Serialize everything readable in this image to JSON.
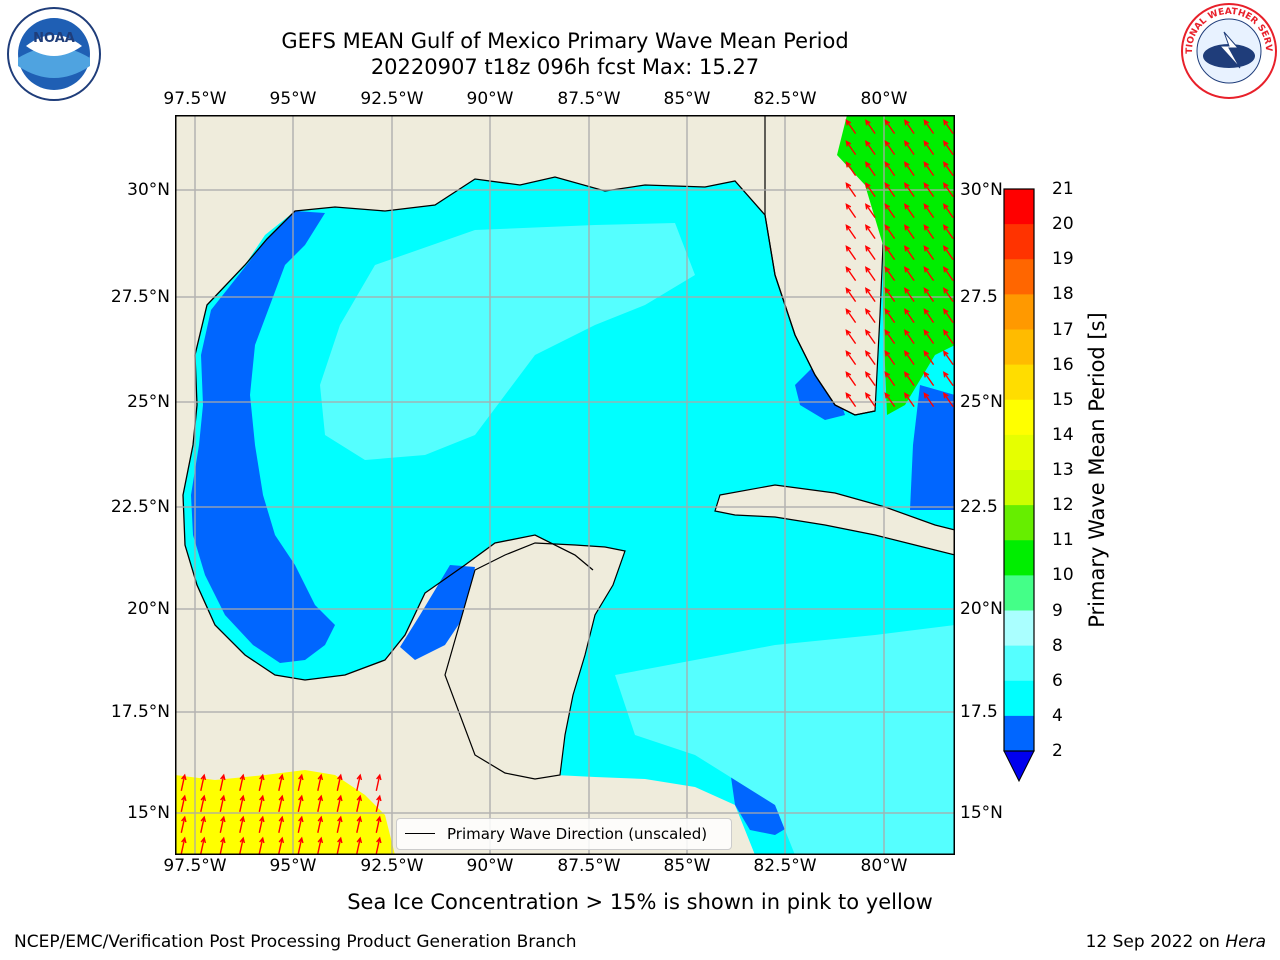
{
  "header": {
    "title_line1": "GEFS MEAN Gulf of Mexico Primary Wave Mean Period",
    "title_line2": "20220907 t18z 096h fcst   Max: 15.27"
  },
  "map": {
    "longitude_ticks": [
      "97.5°W",
      "95°W",
      "92.5°W",
      "90°W",
      "87.5°W",
      "85°W",
      "82.5°W",
      "80°W"
    ],
    "latitude_ticks_left": [
      "30°N",
      "27.5°N",
      "25°N",
      "22.5°N",
      "20°N",
      "17.5°N",
      "15°N"
    ],
    "latitude_ticks_right": [
      "30°N",
      "27.5",
      "25°N",
      "22.5",
      "20°N",
      "17.5",
      "15°N"
    ],
    "legend_label": "Primary Wave Direction (unscaled)",
    "land_color": "#efecdc",
    "arrow_color": "#ff0000"
  },
  "colorbar": {
    "label": "Primary Wave Mean Period [s]",
    "ticks": [
      "21",
      "20",
      "19",
      "18",
      "17",
      "16",
      "15",
      "14",
      "13",
      "12",
      "11",
      "10",
      "9",
      "8",
      "6",
      "4",
      "2"
    ],
    "colors": [
      "#ff0000",
      "#ff3300",
      "#ff6600",
      "#ff9900",
      "#ffbb00",
      "#ffdd00",
      "#ffff00",
      "#e6ff00",
      "#ccff00",
      "#66ee00",
      "#00ee00",
      "#44ff88",
      "#aaffff",
      "#55ffff",
      "#00ffff",
      "#0066ff",
      "#0000ee"
    ]
  },
  "chart_data": {
    "type": "heatmap",
    "title": "GEFS MEAN Gulf of Mexico Primary Wave Mean Period",
    "subtitle": "20220907 t18z 096h fcst   Max: 15.27",
    "variable_label": "Primary Wave Mean Period [s]",
    "max_value": 15.27,
    "color_levels": [
      2,
      4,
      6,
      8,
      9,
      10,
      11,
      12,
      13,
      14,
      15,
      16,
      17,
      18,
      19,
      20,
      21
    ],
    "lon_range": [
      -98,
      -78.2
    ],
    "lat_range": [
      14,
      31.6
    ],
    "legend": "Primary Wave Direction (unscaled)"
  },
  "notes": {
    "sea_ice": "Sea Ice Concentration > 15% is shown in pink to yellow"
  },
  "footer": {
    "org": "NCEP/EMC/Verification Post Processing Product Generation Branch",
    "date": "12 Sep 2022 on",
    "host": "Hera"
  },
  "logos": {
    "noaa": "NOAA",
    "nws": "NATIONAL WEATHER SERVICE"
  }
}
